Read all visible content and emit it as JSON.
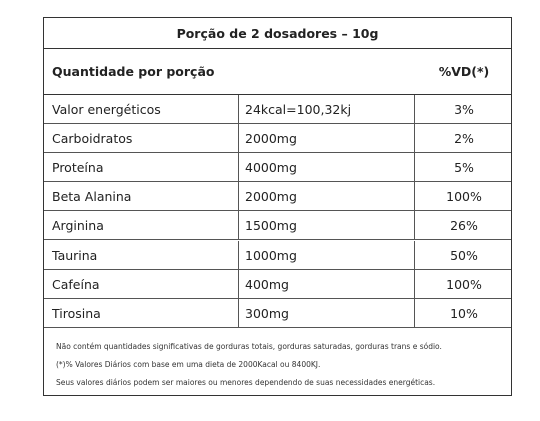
{
  "header": {
    "title": "Porção de 2 dosadores – 10g"
  },
  "table": {
    "columns": [
      "Quantidade por porção",
      "%VD(*)"
    ],
    "rows": [
      [
        "Valor energéticos",
        "24kcal=100,32kj",
        "3%"
      ],
      [
        "Carboidratos",
        "2000mg",
        "2%"
      ],
      [
        "Proteína",
        "4000mg",
        "5%"
      ],
      [
        "Beta Alanina",
        "2000mg",
        "100%"
      ],
      [
        "Arginina",
        "1500mg",
        "26%"
      ],
      [
        "Taurina",
        "1000mg",
        "50%"
      ],
      [
        "Cafeína",
        "400mg",
        "100%"
      ],
      [
        "Tirosina",
        "300mg",
        "10%"
      ]
    ]
  },
  "footnotes": [
    "Não contém quantidades significativas de gorduras totais, gorduras saturadas, gorduras trans e sódio.",
    "(*)% Valores Diários com base em uma dieta de 2000Kacal ou 8400KJ.",
    "Seus valores diários podem ser maiores ou menores dependendo de suas necessidades energéticas."
  ]
}
